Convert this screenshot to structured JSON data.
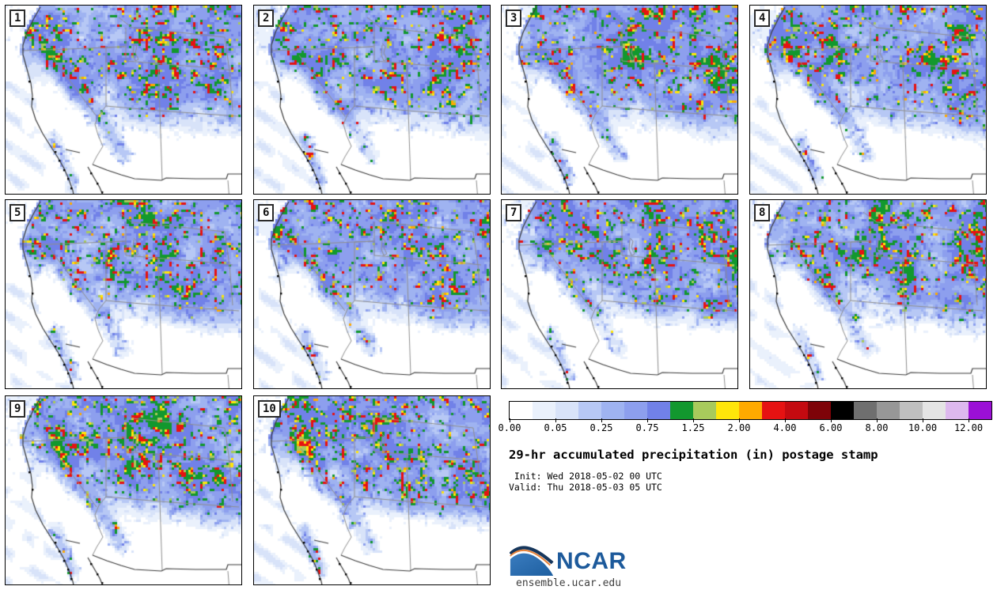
{
  "panels": {
    "count": 10,
    "members": [
      {
        "id": "1"
      },
      {
        "id": "2"
      },
      {
        "id": "3"
      },
      {
        "id": "4"
      },
      {
        "id": "5"
      },
      {
        "id": "6"
      },
      {
        "id": "7"
      },
      {
        "id": "8"
      },
      {
        "id": "9"
      },
      {
        "id": "10"
      }
    ]
  },
  "colorbar": {
    "units": "in",
    "tick_labels": [
      "0.00",
      "0.05",
      "0.25",
      "0.75",
      "1.25",
      "2.00",
      "4.00",
      "6.00",
      "8.00",
      "10.00",
      "12.00"
    ],
    "segment_colors": [
      "#ffffff",
      "#eaf1fc",
      "#d8e3f9",
      "#b7c8f5",
      "#9fb3f1",
      "#8d9fee",
      "#7181e8",
      "#12982e",
      "#a8ca5c",
      "#ffe60a",
      "#ffaa00",
      "#e61212",
      "#c40a10",
      "#7e0308",
      "#000000",
      "#6f6f6f",
      "#979797",
      "#bfbfbf",
      "#e4e4e4",
      "#ddb8ee",
      "#9b10d6"
    ]
  },
  "legend": {
    "title": "29-hr accumulated precipitation (in) postage stamp",
    "init_line": " Init: Wed 2018-05-02 00 UTC",
    "valid_line": "Valid: Thu 2018-05-03 05 UTC"
  },
  "branding": {
    "logo_text": "NCAR",
    "url": "ensemble.ucar.edu",
    "logo_blue": "#2e6fae",
    "logo_navy": "#16365c",
    "logo_orange": "#e8833a",
    "text_blue": "#1d5a9b"
  },
  "map": {
    "precip_palette": [
      "#ffffff",
      "#eaf1fc",
      "#d8e3f9",
      "#b7c8f5",
      "#9fb3f1",
      "#8d9fee",
      "#7181e8",
      "#12982e",
      "#a8ca5c",
      "#ffe60a",
      "#ffaa00",
      "#e61212"
    ]
  }
}
